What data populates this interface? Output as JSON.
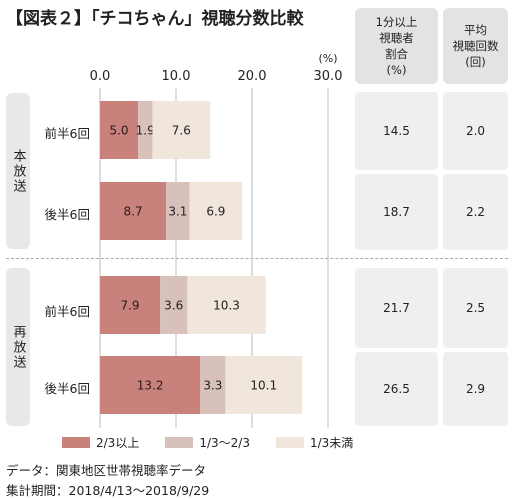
{
  "title": "【図表２】「チコちゃん」視聴分数比較",
  "columns": [
    {
      "lines": [
        "1分以上",
        "視聴者",
        "割合",
        "(%)"
      ]
    },
    {
      "lines": [
        "平均",
        "視聴回数",
        "(回)"
      ]
    }
  ],
  "groups": [
    {
      "label": "本放送"
    },
    {
      "label": "再放送"
    }
  ],
  "rows": [
    {
      "label": "前半6回",
      "share": "14.5",
      "avg": "2.0"
    },
    {
      "label": "後半6回",
      "share": "18.7",
      "avg": "2.2"
    },
    {
      "label": "前半6回",
      "share": "21.7",
      "avg": "2.5"
    },
    {
      "label": "後半6回",
      "share": "26.5",
      "avg": "2.9"
    }
  ],
  "chart_data": {
    "type": "bar",
    "stacked": true,
    "orientation": "horizontal",
    "unit_label": "(%)",
    "xlim": [
      0,
      30
    ],
    "ticks": [
      "0.0",
      "10.0",
      "20.0",
      "30.0"
    ],
    "tick_values": [
      0,
      10,
      20,
      30
    ],
    "categories": [
      "本放送 前半6回",
      "本放送 後半6回",
      "再放送 前半6回",
      "再放送 後半6回"
    ],
    "series": [
      {
        "name": "2/3以上",
        "color": "#c9827b",
        "values": [
          5.0,
          8.7,
          7.9,
          13.2
        ],
        "labels": [
          "5.0",
          "8.7",
          "7.9",
          "13.2"
        ]
      },
      {
        "name": "1/3〜2/3",
        "color": "#d9c1bb",
        "values": [
          1.9,
          3.1,
          3.6,
          3.3
        ],
        "labels": [
          "1.9",
          "3.1",
          "3.6",
          "3.3"
        ]
      },
      {
        "name": "1/3未満",
        "color": "#f0e6dc",
        "values": [
          7.6,
          6.9,
          10.3,
          10.1
        ],
        "labels": [
          "7.6",
          "6.9",
          "10.3",
          "10.1"
        ]
      }
    ],
    "grid": true,
    "legend_position": "bottom"
  },
  "notes": {
    "data_source": "データ：関東地区世帯視聴率データ",
    "period": "集計期間：2018/4/13〜2018/9/29"
  }
}
